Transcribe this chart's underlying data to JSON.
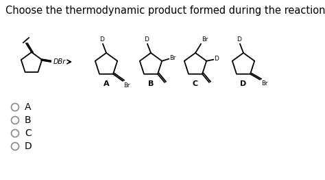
{
  "title": "Choose the thermodynamic product formed during the reaction depicted below.",
  "title_fontsize": 10.5,
  "background_color": "#ffffff",
  "text_color": "#000000",
  "options": [
    "A",
    "B",
    "C",
    "D"
  ],
  "figsize": [
    4.74,
    2.62
  ],
  "dpi": 100
}
